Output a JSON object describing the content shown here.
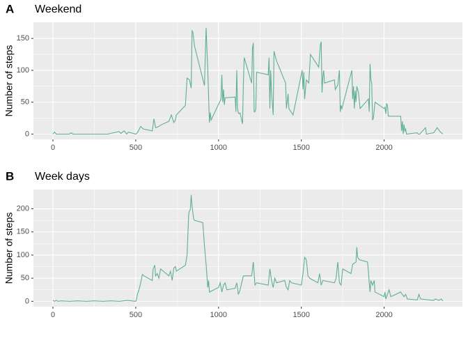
{
  "chart_data": [
    {
      "type": "line",
      "tag": "A",
      "title": "Weekend",
      "y_label": "Number of steps",
      "color": "#5fae95",
      "grid": true,
      "xlim": [
        -117.75,
        2472.75
      ],
      "ylim": [
        -8.35,
        175.35
      ],
      "xticks": [
        0,
        500,
        1000,
        1500,
        2000
      ],
      "yticks": [
        0,
        50,
        100,
        150
      ],
      "x": [
        0,
        10,
        20,
        100,
        110,
        120,
        300,
        330,
        400,
        410,
        430,
        445,
        455,
        500,
        510,
        530,
        545,
        600,
        610,
        620,
        640,
        650,
        700,
        715,
        730,
        740,
        745,
        800,
        810,
        825,
        835,
        840,
        845,
        855,
        915,
        925,
        935,
        945,
        950,
        955,
        1015,
        1020,
        1025,
        1030,
        1035,
        1040,
        1100,
        1105,
        1110,
        1115,
        1120,
        1125,
        1130,
        1145,
        1150,
        1155,
        1200,
        1205,
        1210,
        1215,
        1220,
        1225,
        1230,
        1300,
        1305,
        1310,
        1315,
        1320,
        1330,
        1335,
        1350,
        1405,
        1410,
        1420,
        1425,
        1450,
        1505,
        1510,
        1515,
        1520,
        1530,
        1545,
        1555,
        1605,
        1615,
        1620,
        1625,
        1630,
        1635,
        1640,
        1700,
        1705,
        1720,
        1730,
        1735,
        1740,
        1745,
        1805,
        1810,
        1815,
        1820,
        1825,
        1830,
        1835,
        1845,
        1855,
        1905,
        1910,
        1915,
        1920,
        1925,
        1930,
        1935,
        1945,
        2000,
        2005,
        2010,
        2015,
        2020,
        2025,
        2100,
        2105,
        2110,
        2115,
        2120,
        2125,
        2130,
        2135,
        2200,
        2205,
        2215,
        2250,
        2255,
        2300,
        2320,
        2340,
        2355
      ],
      "values": [
        0,
        3,
        0,
        0,
        2,
        0,
        0,
        0,
        4,
        1,
        5,
        0,
        3,
        0,
        2,
        12,
        8,
        5,
        24,
        10,
        12,
        14,
        20,
        30,
        18,
        22,
        30,
        45,
        88,
        85,
        72,
        162,
        160,
        138,
        76,
        167,
        100,
        18,
        34,
        22,
        55,
        93,
        50,
        70,
        46,
        57,
        58,
        35,
        100,
        40,
        33,
        32,
        33,
        16,
        80,
        120,
        80,
        135,
        143,
        35,
        35,
        40,
        97,
        93,
        120,
        40,
        100,
        65,
        30,
        130,
        115,
        80,
        40,
        63,
        40,
        30,
        100,
        70,
        97,
        55,
        85,
        80,
        125,
        105,
        140,
        145,
        65,
        90,
        100,
        80,
        85,
        70,
        77,
        100,
        35,
        45,
        40,
        100,
        55,
        75,
        40,
        68,
        50,
        75,
        65,
        40,
        55,
        35,
        110,
        85,
        80,
        22,
        25,
        50,
        40,
        42,
        32,
        48,
        45,
        28,
        28,
        5,
        20,
        0,
        15,
        5,
        8,
        0,
        2,
        0,
        0,
        10,
        0,
        2,
        10,
        3,
        0
      ]
    },
    {
      "type": "line",
      "tag": "B",
      "title": "Week days",
      "y_label": "Number of steps",
      "color": "#5fae95",
      "grid": true,
      "xlim": [
        -117.75,
        2472.75
      ],
      "ylim": [
        -11.5,
        241.5
      ],
      "xticks": [
        0,
        500,
        1000,
        1500,
        2000
      ],
      "yticks": [
        0,
        50,
        100,
        150,
        200
      ],
      "x": [
        0,
        10,
        20,
        30,
        50,
        100,
        150,
        200,
        250,
        300,
        350,
        400,
        450,
        500,
        505,
        510,
        520,
        530,
        540,
        550,
        600,
        605,
        615,
        620,
        630,
        640,
        650,
        700,
        710,
        720,
        730,
        740,
        745,
        800,
        810,
        820,
        830,
        835,
        840,
        850,
        855,
        905,
        915,
        925,
        935,
        940,
        945,
        1000,
        1010,
        1020,
        1030,
        1040,
        1050,
        1100,
        1110,
        1120,
        1130,
        1140,
        1150,
        1200,
        1210,
        1215,
        1220,
        1230,
        1300,
        1310,
        1320,
        1330,
        1340,
        1350,
        1400,
        1410,
        1420,
        1430,
        1440,
        1500,
        1510,
        1520,
        1530,
        1540,
        1550,
        1600,
        1610,
        1620,
        1630,
        1700,
        1710,
        1720,
        1730,
        1740,
        1750,
        1800,
        1810,
        1830,
        1835,
        1840,
        1850,
        1900,
        1905,
        1910,
        1915,
        1920,
        1930,
        1940,
        1945,
        2000,
        2005,
        2010,
        2030,
        2040,
        2100,
        2110,
        2120,
        2130,
        2140,
        2200,
        2210,
        2220,
        2300,
        2310,
        2330,
        2345,
        2355
      ],
      "values": [
        2,
        0,
        2,
        0,
        1,
        0,
        1,
        0,
        1,
        0,
        1,
        0,
        2,
        0,
        4,
        15,
        25,
        40,
        58,
        55,
        45,
        70,
        78,
        55,
        60,
        50,
        70,
        55,
        65,
        45,
        72,
        75,
        65,
        78,
        100,
        190,
        200,
        230,
        205,
        178,
        175,
        170,
        120,
        80,
        30,
        45,
        20,
        30,
        40,
        20,
        35,
        40,
        25,
        28,
        40,
        15,
        25,
        40,
        55,
        55,
        85,
        60,
        35,
        40,
        35,
        70,
        45,
        30,
        50,
        40,
        45,
        30,
        25,
        45,
        40,
        35,
        60,
        95,
        90,
        55,
        50,
        40,
        60,
        35,
        45,
        40,
        50,
        85,
        40,
        35,
        70,
        60,
        80,
        85,
        117,
        95,
        90,
        85,
        65,
        40,
        20,
        45,
        35,
        45,
        20,
        10,
        20,
        5,
        25,
        10,
        20,
        15,
        10,
        15,
        5,
        3,
        15,
        5,
        2,
        5,
        2,
        5,
        1
      ]
    }
  ]
}
